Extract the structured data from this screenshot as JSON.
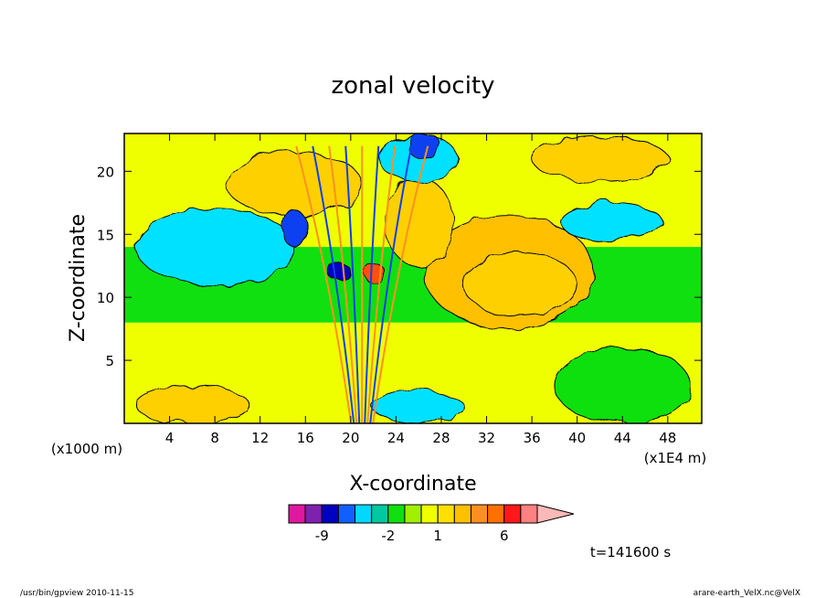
{
  "chart_data": {
    "type": "heatmap",
    "title": "zonal velocity",
    "xlabel": "X-coordinate",
    "ylabel": "Z-coordinate",
    "x_unit_left": "(x1000 m)",
    "x_unit_right": "(x1E4 m)",
    "xlim": [
      0,
      51
    ],
    "ylim": [
      0,
      23
    ],
    "x_ticks": [
      4,
      8,
      12,
      16,
      20,
      24,
      28,
      32,
      36,
      40,
      44,
      48
    ],
    "y_ticks": [
      5,
      10,
      15,
      20
    ],
    "time_label": "t=141600 s",
    "colorbar": {
      "labels": [
        {
          "text": "-9",
          "level": -9
        },
        {
          "text": "-2",
          "level": -2
        },
        {
          "text": "1",
          "level": 1
        },
        {
          "text": "6",
          "level": 6
        }
      ],
      "levels": [
        -11,
        -9,
        -7,
        -4,
        -3,
        -2,
        -1,
        0,
        1,
        2,
        3,
        4,
        6,
        8,
        10
      ],
      "colors": [
        "#e018a0",
        "#8020b0",
        "#0000c0",
        "#1060ff",
        "#00d8ff",
        "#00c8a0",
        "#10e010",
        "#a0f000",
        "#f0ff00",
        "#ffe000",
        "#ffc000",
        "#ff9020",
        "#ff7000",
        "#ff1818",
        "#ff8080",
        "#ffb8b8"
      ]
    },
    "regions": [
      {
        "kind": "band",
        "x": [
          0,
          51
        ],
        "y": [
          0,
          8
        ],
        "level": "yellow"
      },
      {
        "kind": "band",
        "x": [
          0,
          51
        ],
        "y": [
          8,
          14
        ],
        "level": "green"
      },
      {
        "kind": "band",
        "x": [
          0,
          51
        ],
        "y": [
          14,
          23
        ],
        "level": "yellow"
      },
      {
        "kind": "blob",
        "cx": 34,
        "cy": 12,
        "rx": 7.5,
        "ry": 4.5,
        "level": "orange"
      },
      {
        "kind": "blob",
        "cx": 35,
        "cy": 11,
        "rx": 5,
        "ry": 2.5,
        "level": "lightorange"
      },
      {
        "kind": "blob",
        "cx": 8,
        "cy": 14,
        "rx": 7,
        "ry": 3,
        "level": "cyan"
      },
      {
        "kind": "blob",
        "cx": 15,
        "cy": 19,
        "rx": 6,
        "ry": 2.5,
        "level": "lightorange"
      },
      {
        "kind": "blob",
        "cx": 26,
        "cy": 16,
        "rx": 3,
        "ry": 3.5,
        "level": "lightorange"
      },
      {
        "kind": "blob",
        "cx": 26,
        "cy": 21,
        "rx": 3.5,
        "ry": 1.8,
        "level": "cyan"
      },
      {
        "kind": "blob",
        "cx": 26.5,
        "cy": 22,
        "rx": 1.5,
        "ry": 1,
        "level": "blue"
      },
      {
        "kind": "blob",
        "cx": 15,
        "cy": 15.5,
        "rx": 1,
        "ry": 1.5,
        "level": "blue"
      },
      {
        "kind": "blob",
        "cx": 19,
        "cy": 12,
        "rx": 0.9,
        "ry": 0.8,
        "level": "darkblue"
      },
      {
        "kind": "blob",
        "cx": 22,
        "cy": 12,
        "rx": 0.9,
        "ry": 0.8,
        "level": "red"
      },
      {
        "kind": "blob",
        "cx": 26,
        "cy": 1.3,
        "rx": 4,
        "ry": 1.3,
        "level": "cyan"
      },
      {
        "kind": "blob",
        "cx": 43,
        "cy": 16,
        "rx": 4.5,
        "ry": 1.5,
        "level": "cyan"
      },
      {
        "kind": "blob",
        "cx": 44,
        "cy": 3,
        "rx": 6,
        "ry": 3,
        "level": "green"
      },
      {
        "kind": "blob",
        "cx": 6,
        "cy": 1.5,
        "rx": 5,
        "ry": 1.5,
        "level": "lightorange"
      },
      {
        "kind": "blob",
        "cx": 42,
        "cy": 21,
        "rx": 6,
        "ry": 1.8,
        "level": "lightorange"
      }
    ]
  },
  "footer": {
    "left": "/usr/bin/gpview   2010-11-15",
    "right": "arare-earth_VelX.nc@VelX"
  }
}
